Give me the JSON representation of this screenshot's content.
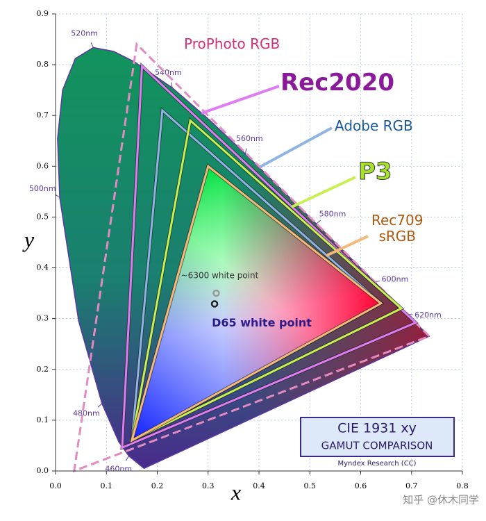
{
  "chart_data": {
    "type": "gamut",
    "xlabel": "x",
    "ylabel": "y",
    "xlim": [
      0,
      0.8
    ],
    "ylim": [
      0,
      0.9
    ],
    "xticks": [
      {
        "value": 0,
        "label": "0.0"
      },
      {
        "value": 0.1,
        "label": "0.1"
      },
      {
        "value": 0.2,
        "label": "0.2"
      },
      {
        "value": 0.3,
        "label": "0.3"
      },
      {
        "value": 0.4,
        "label": "0.4"
      },
      {
        "value": 0.5,
        "label": "0.5"
      },
      {
        "value": 0.6,
        "label": "0.6"
      },
      {
        "value": 0.7,
        "label": "0.7"
      },
      {
        "value": 0.8,
        "label": "0.8"
      }
    ],
    "yticks": [
      {
        "value": 0,
        "label": "0.0"
      },
      {
        "value": 0.1,
        "label": "0.1"
      },
      {
        "value": 0.2,
        "label": "0.2"
      },
      {
        "value": 0.3,
        "label": "0.3"
      },
      {
        "value": 0.4,
        "label": "0.4"
      },
      {
        "value": 0.5,
        "label": "0.5"
      },
      {
        "value": 0.6,
        "label": "0.6"
      },
      {
        "value": 0.7,
        "label": "0.7"
      },
      {
        "value": 0.8,
        "label": "0.8"
      },
      {
        "value": 0.9,
        "label": "0.9"
      }
    ],
    "grid": true,
    "locus": {
      "x": [
        0.1741,
        0.144,
        0.1241,
        0.0913,
        0.0454,
        0.0082,
        0.0039,
        0.0139,
        0.0389,
        0.0743,
        0.1142,
        0.1547,
        0.2296,
        0.3016,
        0.3731,
        0.4441,
        0.5125,
        0.5752,
        0.627,
        0.6915,
        0.7347
      ],
      "y": [
        0.005,
        0.0297,
        0.0578,
        0.1327,
        0.295,
        0.5384,
        0.6548,
        0.7502,
        0.812,
        0.8338,
        0.8262,
        0.8059,
        0.7543,
        0.6923,
        0.6245,
        0.5547,
        0.4866,
        0.4242,
        0.3725,
        0.3083,
        0.2653
      ],
      "labels": [
        null,
        "460nm",
        null,
        "480nm",
        null,
        "500nm",
        null,
        null,
        null,
        "520nm",
        null,
        null,
        "540nm",
        null,
        "560nm",
        null,
        "580nm",
        null,
        "600nm",
        "620nm",
        null
      ],
      "color": "#5a3aa0"
    },
    "series": [
      {
        "name": "ProPhoto RGB",
        "color": "#e38ac0",
        "label_color": "#d0307a",
        "dashed": true,
        "x": [
          0.7347,
          0.1596,
          0.0366
        ],
        "y": [
          0.2653,
          0.8404,
          0.0001
        ]
      },
      {
        "name": "Rec2020",
        "color": "#e07cf2",
        "label_color": "#8a1a9a",
        "dashed": false,
        "x": [
          0.708,
          0.17,
          0.131
        ],
        "y": [
          0.292,
          0.797,
          0.046
        ]
      },
      {
        "name": "Adobe RGB",
        "color": "#8fb4e4",
        "label_color": "#1a5a9a",
        "dashed": false,
        "x": [
          0.64,
          0.21,
          0.15
        ],
        "y": [
          0.33,
          0.71,
          0.06
        ]
      },
      {
        "name": "P3",
        "color": "#c8f050",
        "label_color": "#a6e22a",
        "dashed": false,
        "x": [
          0.68,
          0.265,
          0.15
        ],
        "y": [
          0.32,
          0.69,
          0.06
        ]
      },
      {
        "name": "Rec709\nsRGB",
        "color": "#f4b878",
        "label_color": "#b05a10",
        "dashed": false,
        "x": [
          0.64,
          0.3,
          0.15
        ],
        "y": [
          0.33,
          0.6,
          0.06
        ]
      }
    ],
    "white_points": [
      {
        "name": "~6300 white point",
        "x": 0.316,
        "y": 0.35,
        "color": "#999999"
      },
      {
        "name": "D65 white point",
        "x": 0.3127,
        "y": 0.329,
        "color": "#222222"
      }
    ],
    "box": {
      "title": "CIE 1931 xy",
      "subtitle": "GAMUT COMPARISON",
      "credit": "Myndex Research (CC)"
    }
  },
  "watermark": "知乎 @休木同学"
}
